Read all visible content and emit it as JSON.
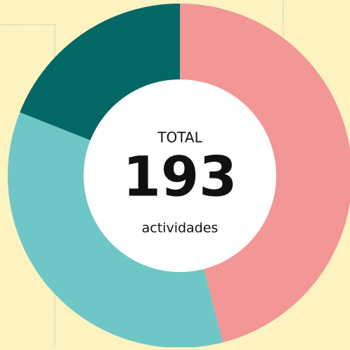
{
  "chart_data": {
    "type": "donut",
    "categories": [
      null,
      null,
      null
    ],
    "values": [
      46,
      35,
      19
    ],
    "colors": [
      "#f29696",
      "#6fc6c6",
      "#036865"
    ],
    "center_label": "TOTAL",
    "total": 193,
    "total_unit": "actividades"
  }
}
